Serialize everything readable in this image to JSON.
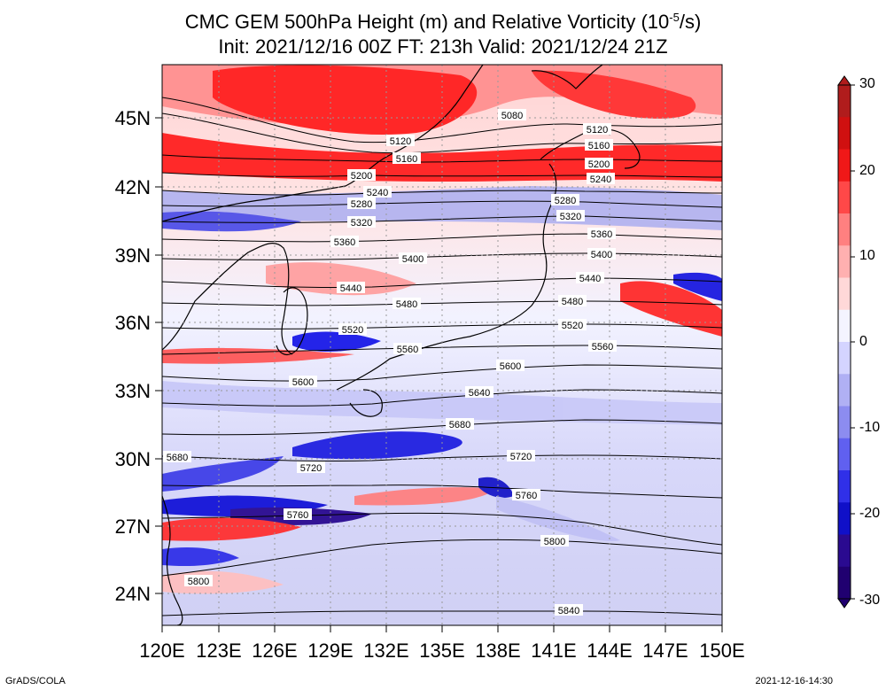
{
  "title": {
    "line1": "CMC GEM 500hPa Height (m) and Relative Vorticity (10",
    "line1_exp": "-5",
    "line1_tail": "/s)",
    "line2": "Init: 2021/12/16 00Z  FT: 213h  Valid: 2021/12/24 21Z"
  },
  "axes": {
    "lon_ticks": [
      "120E",
      "123E",
      "126E",
      "129E",
      "132E",
      "135E",
      "138E",
      "141E",
      "144E",
      "147E",
      "150E"
    ],
    "lat_ticks": [
      "45N",
      "42N",
      "39N",
      "36N",
      "33N",
      "30N",
      "27N",
      "24N"
    ]
  },
  "colorbar": {
    "ticks": [
      "30",
      "20",
      "10",
      "0",
      "-10",
      "-20",
      "-30"
    ],
    "colors_top_to_bottom": [
      "#b01c1c",
      "#d01010",
      "#f01818",
      "#ff4848",
      "#ff8080",
      "#ffb0b0",
      "#ffd8d8",
      "#f4f4ff",
      "#d4d4ff",
      "#b0b0f4",
      "#8c8cf0",
      "#6060f0",
      "#3030e8",
      "#1010c8",
      "#2a0a90",
      "#200070"
    ]
  },
  "contour_labels": [
    {
      "text": "5080"
    },
    {
      "text": "5120"
    },
    {
      "text": "5120"
    },
    {
      "text": "5160"
    },
    {
      "text": "5160"
    },
    {
      "text": "5200"
    },
    {
      "text": "5200"
    },
    {
      "text": "5240"
    },
    {
      "text": "5240"
    },
    {
      "text": "5280"
    },
    {
      "text": "5280"
    },
    {
      "text": "5320"
    },
    {
      "text": "5320"
    },
    {
      "text": "5360"
    },
    {
      "text": "5360"
    },
    {
      "text": "5400"
    },
    {
      "text": "5400"
    },
    {
      "text": "5440"
    },
    {
      "text": "5440"
    },
    {
      "text": "5480"
    },
    {
      "text": "5480"
    },
    {
      "text": "5520"
    },
    {
      "text": "5520"
    },
    {
      "text": "5560"
    },
    {
      "text": "5560"
    },
    {
      "text": "5600"
    },
    {
      "text": "5600"
    },
    {
      "text": "5640"
    },
    {
      "text": "5680"
    },
    {
      "text": "5680"
    },
    {
      "text": "5720"
    },
    {
      "text": "5720"
    },
    {
      "text": "5760"
    },
    {
      "text": "5760"
    },
    {
      "text": "5800"
    },
    {
      "text": "5800"
    },
    {
      "text": "5840"
    }
  ],
  "footer": {
    "left": "GrADS/COLA",
    "right": "2021-12-16-14:30"
  }
}
